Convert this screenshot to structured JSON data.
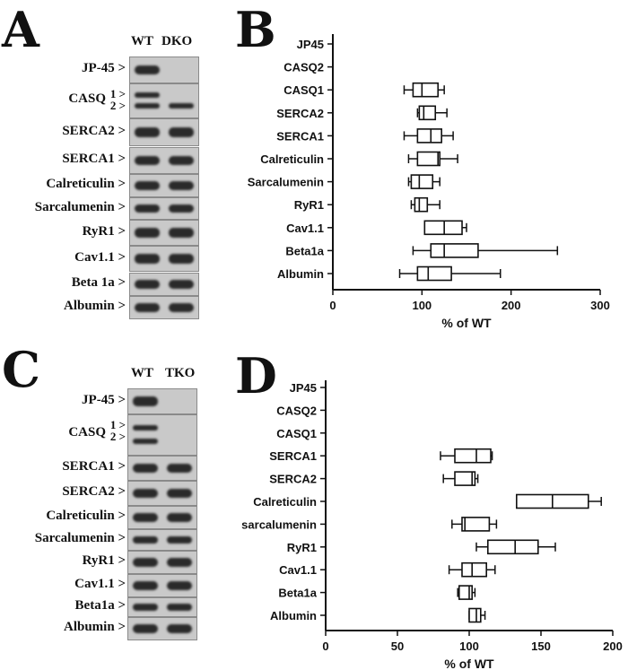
{
  "panels": {
    "a": {
      "letter": "A"
    },
    "b": {
      "letter": "B"
    },
    "c": {
      "letter": "C"
    },
    "d": {
      "letter": "D"
    }
  },
  "blot_a": {
    "lanes": [
      "WT",
      "DKO"
    ],
    "rows": [
      {
        "label": "JP-45 >",
        "bands": [
          1,
          0
        ]
      },
      {
        "label": "CASQ",
        "sub": [
          "1 >",
          "2 >"
        ],
        "bands": [
          1,
          1
        ]
      },
      {
        "label": "SERCA2 >",
        "bands": [
          1,
          1
        ]
      },
      {
        "label": "SERCA1 >",
        "bands": [
          1,
          1
        ]
      },
      {
        "label": "Calreticulin >",
        "bands": [
          1,
          1
        ]
      },
      {
        "label": "Sarcalumenin >",
        "bands": [
          1,
          1
        ]
      },
      {
        "label": "RyR1 >",
        "bands": [
          1,
          1
        ]
      },
      {
        "label": "Cav1.1 >",
        "bands": [
          1,
          1
        ]
      },
      {
        "label": "Beta 1a >",
        "bands": [
          1,
          1
        ]
      },
      {
        "label": "Albumin >",
        "bands": [
          1,
          1
        ]
      }
    ]
  },
  "blot_c": {
    "lanes": [
      "WT",
      "TKO"
    ],
    "rows": [
      {
        "label": "JP-45 >",
        "bands": [
          1,
          0
        ]
      },
      {
        "label": "CASQ",
        "sub": [
          "1 >",
          "2 >"
        ],
        "bands": [
          1,
          0
        ]
      },
      {
        "label": "SERCA1 >",
        "bands": [
          1,
          1
        ]
      },
      {
        "label": "SERCA2 >",
        "bands": [
          1,
          1
        ]
      },
      {
        "label": "Calreticulin >",
        "bands": [
          1,
          1
        ]
      },
      {
        "label": "Sarcalumenin >",
        "bands": [
          1,
          1
        ]
      },
      {
        "label": "RyR1 >",
        "bands": [
          1,
          1
        ]
      },
      {
        "label": "Cav1.1 >",
        "bands": [
          1,
          1
        ]
      },
      {
        "label": "Beta1a >",
        "bands": [
          1,
          1
        ]
      },
      {
        "label": "Albumin >",
        "bands": [
          1,
          1
        ]
      }
    ]
  },
  "chart_data": [
    {
      "panel": "B",
      "type": "boxplot",
      "orientation": "horizontal",
      "xlabel": "% of WT",
      "ylabel": "",
      "xlim": [
        0,
        300
      ],
      "xticks": [
        0,
        100,
        200,
        300
      ],
      "categories": [
        "JP45",
        "CASQ2",
        "CASQ1",
        "SERCA2",
        "SERCA1",
        "Calreticulin",
        "Sarcalumenin",
        "RyR1",
        "Cav1.1",
        "Beta1a",
        "Albumin"
      ],
      "boxes": [
        null,
        null,
        {
          "min": 80,
          "q1": 90,
          "median": 100,
          "q3": 118,
          "max": 125
        },
        {
          "min": 95,
          "q1": 97,
          "median": 102,
          "q3": 115,
          "max": 128
        },
        {
          "min": 80,
          "q1": 95,
          "median": 110,
          "q3": 122,
          "max": 135
        },
        {
          "min": 85,
          "q1": 95,
          "median": 118,
          "q3": 120,
          "max": 140
        },
        {
          "min": 85,
          "q1": 88,
          "median": 97,
          "q3": 112,
          "max": 120
        },
        {
          "min": 88,
          "q1": 92,
          "median": 97,
          "q3": 106,
          "max": 120
        },
        {
          "min": 103,
          "q1": 103,
          "median": 125,
          "q3": 145,
          "max": 150
        },
        {
          "min": 90,
          "q1": 110,
          "median": 125,
          "q3": 163,
          "max": 252
        },
        {
          "min": 75,
          "q1": 95,
          "median": 107,
          "q3": 133,
          "max": 188
        }
      ]
    },
    {
      "panel": "D",
      "type": "boxplot",
      "orientation": "horizontal",
      "xlabel": "% of WT",
      "ylabel": "",
      "xlim": [
        0,
        200
      ],
      "xticks": [
        0,
        50,
        100,
        150,
        200
      ],
      "categories": [
        "JP45",
        "CASQ2",
        "CASQ1",
        "SERCA1",
        "SERCA2",
        "Calreticulin",
        "sarcalumenin",
        "RyR1",
        "Cav1.1",
        "Beta1a",
        "Albumin"
      ],
      "boxes": [
        null,
        null,
        null,
        {
          "min": 80,
          "q1": 90,
          "median": 105,
          "q3": 115,
          "max": 116
        },
        {
          "min": 82,
          "q1": 90,
          "median": 102,
          "q3": 104,
          "max": 106
        },
        {
          "min": 133,
          "q1": 133,
          "median": 158,
          "q3": 183,
          "max": 192
        },
        {
          "min": 88,
          "q1": 95,
          "median": 97,
          "q3": 114,
          "max": 119
        },
        {
          "min": 105,
          "q1": 113,
          "median": 132,
          "q3": 148,
          "max": 160
        },
        {
          "min": 86,
          "q1": 95,
          "median": 102,
          "q3": 112,
          "max": 118
        },
        {
          "min": 92,
          "q1": 93,
          "median": 100,
          "q3": 102,
          "max": 104
        },
        {
          "min": 100,
          "q1": 100,
          "median": 105,
          "q3": 108,
          "max": 111
        }
      ]
    }
  ]
}
